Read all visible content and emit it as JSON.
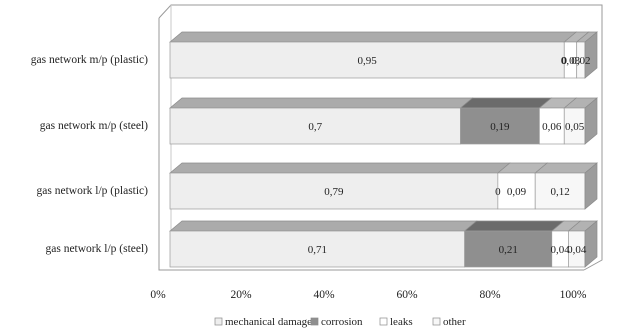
{
  "chart_data": {
    "type": "bar",
    "orientation": "horizontal",
    "stacked": "percent",
    "three_d": true,
    "categories": [
      "gas network m/p (plastic)",
      "gas network m/p (steel)",
      "gas network l/p (plastic)",
      "gas network l/p (steel)"
    ],
    "series": [
      {
        "name": "mechanical damage",
        "values": [
          0.95,
          0.7,
          0.79,
          0.71
        ],
        "labels": [
          "0,95",
          "0,7",
          "0,79",
          "0,71"
        ]
      },
      {
        "name": "corrosion",
        "values": [
          0.0,
          0.19,
          0.0,
          0.21
        ],
        "labels": [
          "0",
          "0,19",
          "0",
          "0,21"
        ]
      },
      {
        "name": "leaks",
        "values": [
          0.03,
          0.06,
          0.09,
          0.04
        ],
        "labels": [
          "0,03",
          "0,06",
          "0,09",
          "0,04"
        ]
      },
      {
        "name": "other",
        "values": [
          0.02,
          0.05,
          0.12,
          0.04
        ],
        "labels": [
          "0,02",
          "0,05",
          "0,12",
          "0,04"
        ]
      }
    ],
    "x_ticks": [
      "0%",
      "20%",
      "40%",
      "60%",
      "80%",
      "100%"
    ],
    "xlim": [
      0,
      1
    ],
    "legend_position": "bottom",
    "grid": false
  },
  "colors": {
    "mechanical damage": "#eeeeee",
    "corrosion": "#8f8f8f",
    "leaks": "#ffffff",
    "other": "#f7f7f7"
  }
}
